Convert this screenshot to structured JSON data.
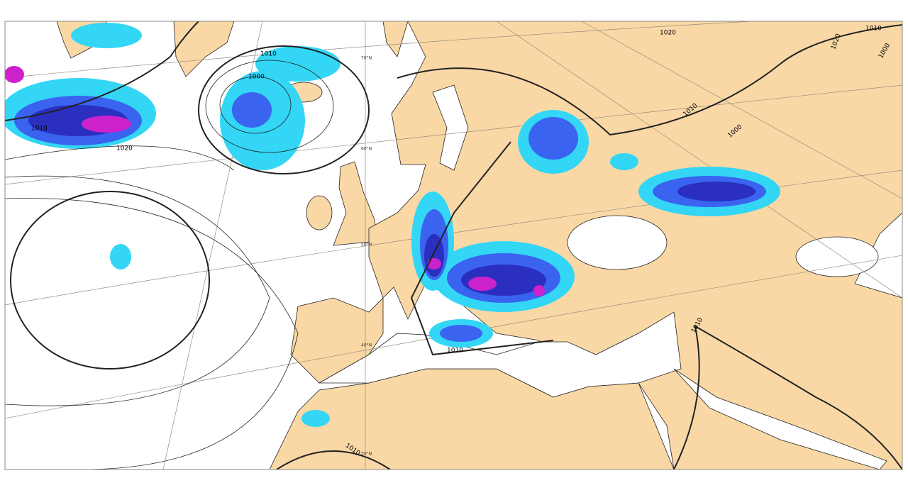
{
  "isobar_labels": [
    "1000",
    "1010",
    "1000",
    "1010",
    "1020",
    "1020",
    "1010",
    "1000",
    "1020",
    "1010",
    "1000",
    "1010",
    "1010",
    "1010"
  ],
  "latitude_labels": [
    "70°N",
    "60°N",
    "50°N",
    "40°N",
    "30°N"
  ]
}
